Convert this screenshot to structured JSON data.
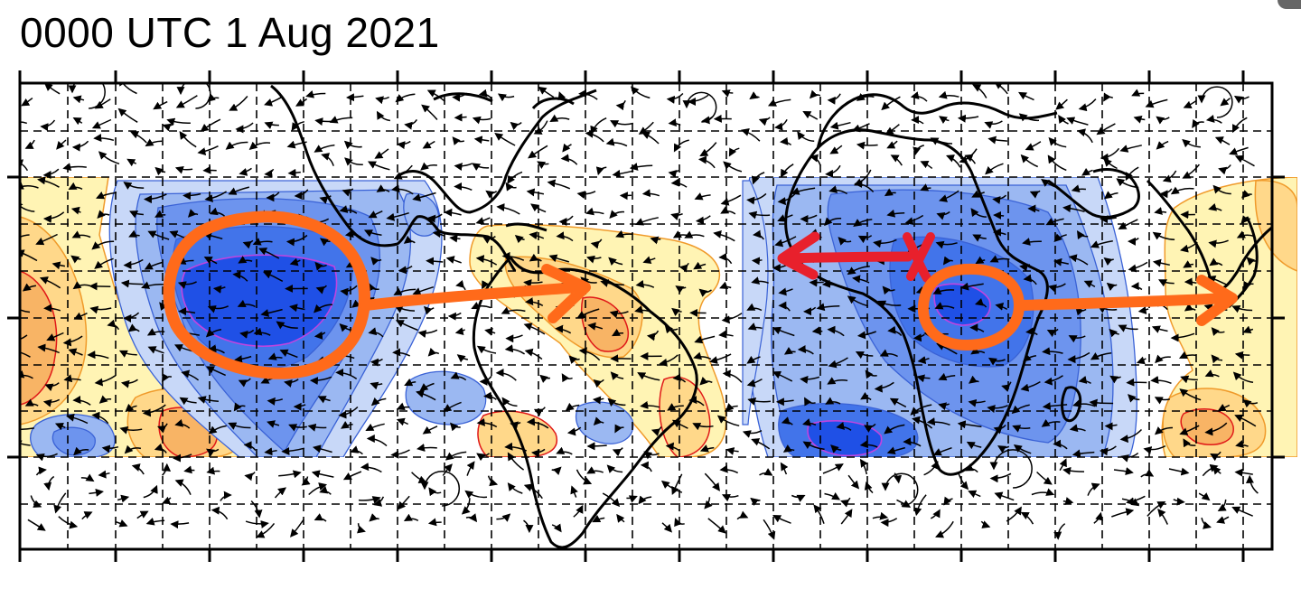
{
  "header": {
    "title": "0000 UTC 1 Aug 2021"
  },
  "map": {
    "palette": {
      "neg1": "#c8d8f8",
      "neg2": "#9bb8f2",
      "neg3": "#6d94ee",
      "neg4": "#4274ea",
      "neg5": "#1f50e6",
      "pos1": "#fff4b4",
      "pos2": "#ffd88a",
      "pos3": "#f8b465",
      "contour_neg": "#3a62d6",
      "contour_pos": "#f09a2a",
      "contour_inner_neg": "#c044e0",
      "contour_inner_pos": "#e01818",
      "coast": "#000000",
      "annotation_orange": "#ff6a1a",
      "annotation_red": "#e8202c"
    },
    "annotations": [
      {
        "type": "circle",
        "color": "orange",
        "name": "pacific-anomaly-circle"
      },
      {
        "type": "arrow",
        "color": "orange",
        "direction": "east",
        "name": "pacific-east-arrow"
      },
      {
        "type": "arrow",
        "color": "red",
        "direction": "west",
        "name": "africa-west-arrow"
      },
      {
        "type": "cross",
        "color": "red",
        "name": "africa-x-mark"
      },
      {
        "type": "circle",
        "color": "orange",
        "name": "africa-anomaly-circle"
      },
      {
        "type": "arrow",
        "color": "orange",
        "direction": "east",
        "name": "africa-east-arrow"
      }
    ]
  }
}
